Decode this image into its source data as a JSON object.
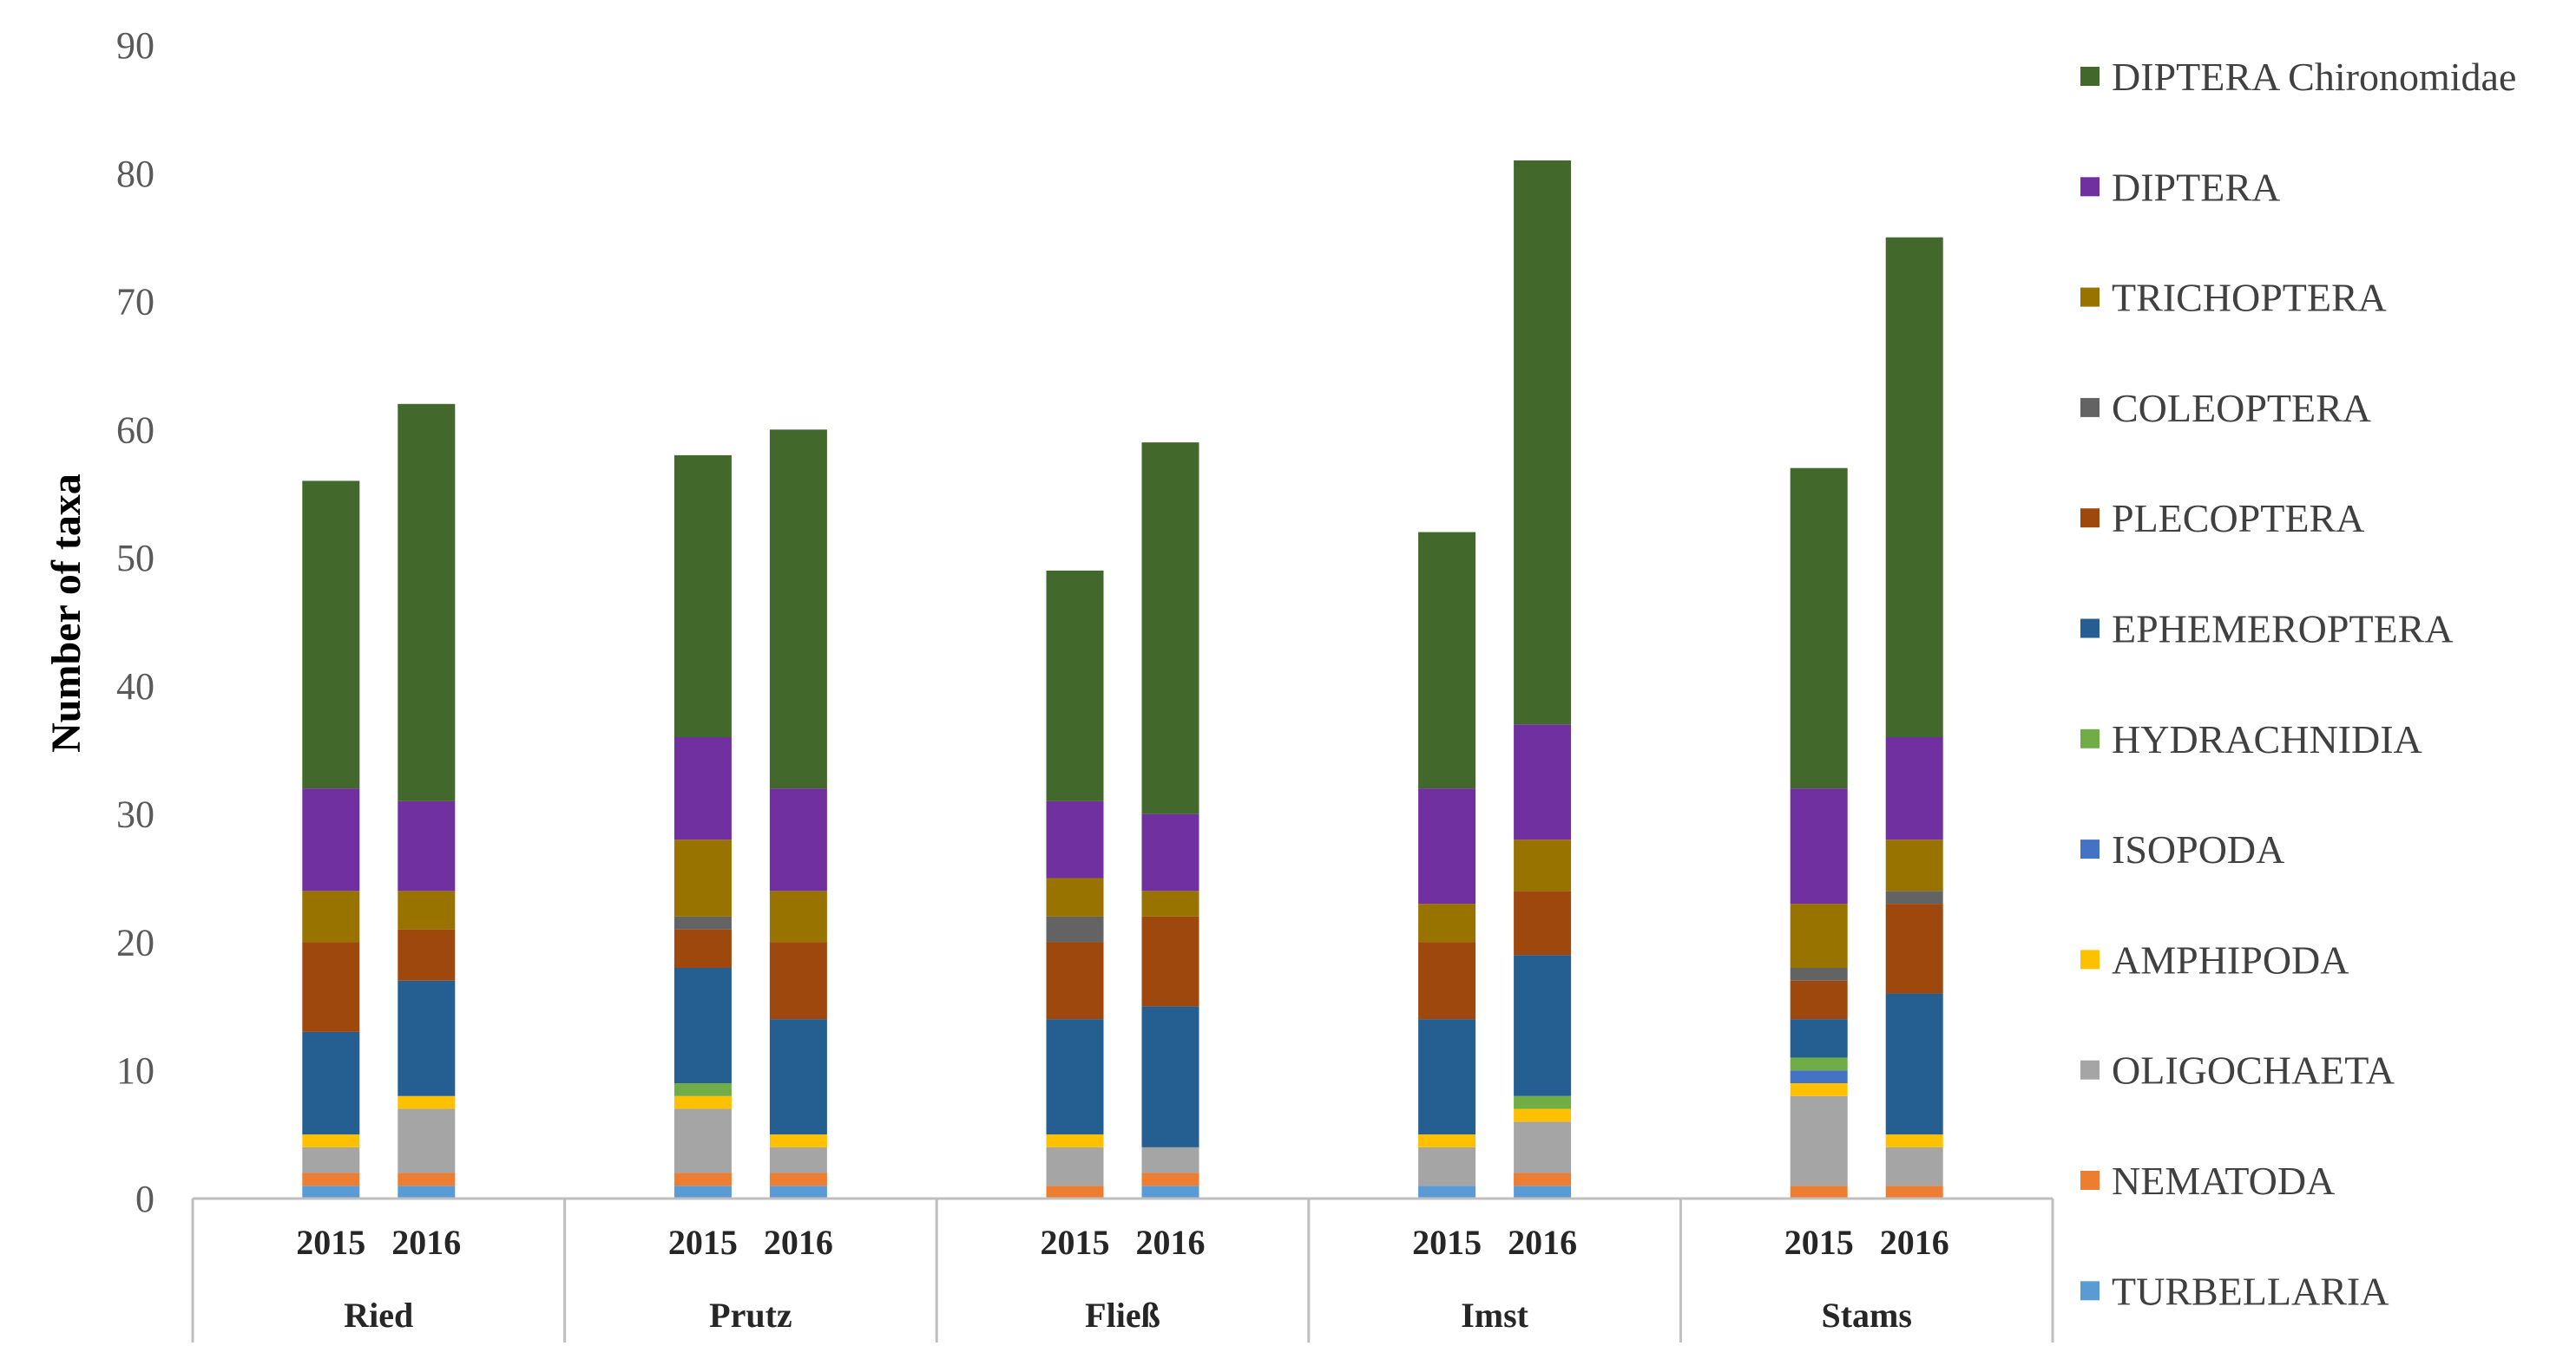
{
  "chart_data": {
    "type": "bar",
    "stacked": true,
    "title": "",
    "xlabel": "",
    "ylabel": "Number of taxa",
    "ylim": [
      0,
      90
    ],
    "yticks": [
      0,
      10,
      20,
      30,
      40,
      50,
      60,
      70,
      80,
      90
    ],
    "grid": false,
    "legend_position": "right",
    "groups": [
      "Ried",
      "Prutz",
      "Fließ",
      "Imst",
      "Stams"
    ],
    "years": [
      "2015",
      "2016"
    ],
    "categories": [
      "Ried 2015",
      "Ried 2016",
      "Prutz 2015",
      "Prutz 2016",
      "Fließ 2015",
      "Fließ 2016",
      "Imst 2015",
      "Imst 2016",
      "Stams 2015",
      "Stams 2016"
    ],
    "series": [
      {
        "name": "TURBELLARIA",
        "color": "#5B9BD5",
        "values": [
          1,
          1,
          1,
          1,
          0,
          1,
          1,
          1,
          0,
          0
        ]
      },
      {
        "name": "NEMATODA",
        "color": "#ED7D31",
        "values": [
          1,
          1,
          1,
          1,
          1,
          1,
          0,
          1,
          1,
          1
        ]
      },
      {
        "name": "OLIGOCHAETA",
        "color": "#A5A5A5",
        "values": [
          2,
          5,
          5,
          2,
          3,
          2,
          3,
          4,
          7,
          3
        ]
      },
      {
        "name": "AMPHIPODA",
        "color": "#FFC000",
        "values": [
          1,
          1,
          1,
          1,
          1,
          0,
          1,
          1,
          1,
          1
        ]
      },
      {
        "name": "ISOPODA",
        "color": "#4472C4",
        "values": [
          0,
          0,
          0,
          0,
          0,
          0,
          0,
          0,
          1,
          0
        ]
      },
      {
        "name": "HYDRACHNIDIA",
        "color": "#70AD47",
        "values": [
          0,
          0,
          1,
          0,
          0,
          0,
          0,
          1,
          1,
          0
        ]
      },
      {
        "name": "EPHEMEROPTERA",
        "color": "#255E91",
        "values": [
          8,
          9,
          9,
          9,
          9,
          11,
          9,
          11,
          3,
          11
        ]
      },
      {
        "name": "PLECOPTERA",
        "color": "#9E480E",
        "values": [
          7,
          4,
          3,
          6,
          6,
          7,
          6,
          5,
          3,
          7
        ]
      },
      {
        "name": "COLEOPTERA",
        "color": "#636363",
        "values": [
          0,
          0,
          1,
          0,
          2,
          0,
          0,
          0,
          1,
          1
        ]
      },
      {
        "name": "TRICHOPTERA",
        "color": "#997300",
        "values": [
          4,
          3,
          6,
          4,
          3,
          2,
          3,
          4,
          5,
          4
        ]
      },
      {
        "name": "DIPTERA",
        "color": "#7030A0",
        "values": [
          8,
          7,
          8,
          8,
          6,
          6,
          9,
          9,
          9,
          8
        ]
      },
      {
        "name": "DIPTERA Chironomidae",
        "color": "#43682B",
        "values": [
          24,
          31,
          22,
          28,
          18,
          29,
          20,
          44,
          25,
          39
        ]
      }
    ],
    "totals": [
      56,
      62,
      58,
      60,
      49,
      59,
      52,
      81,
      57,
      75
    ]
  }
}
